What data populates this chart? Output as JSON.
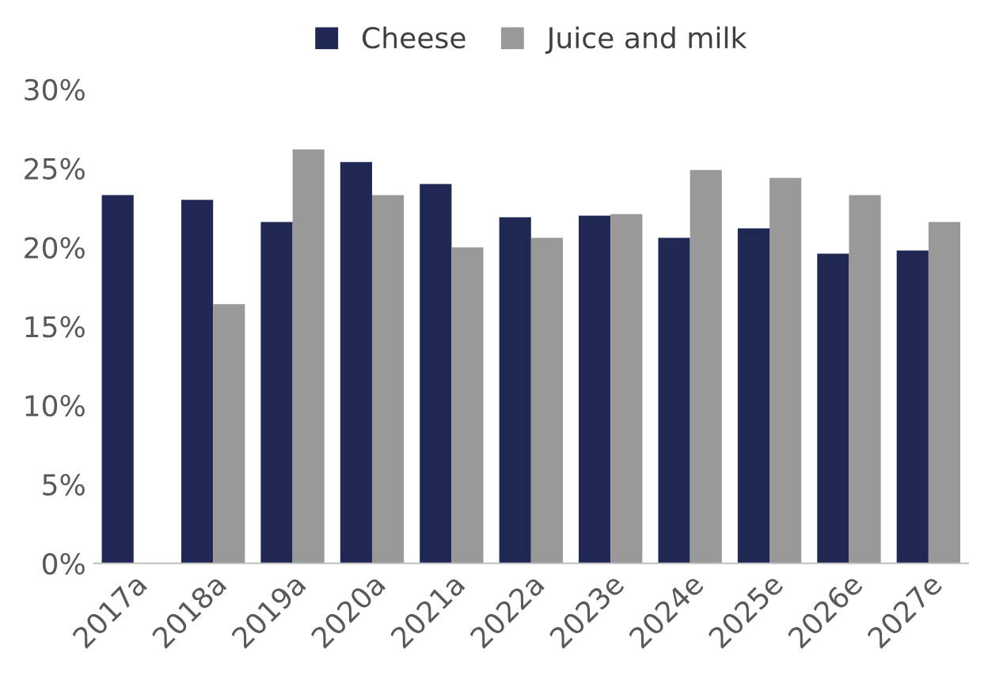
{
  "chart_data": {
    "type": "bar",
    "categories": [
      "2017a",
      "2018a",
      "2019a",
      "2020a",
      "2021a",
      "2022a",
      "2023e",
      "2024e",
      "2025e",
      "2026e",
      "2027e"
    ],
    "series": [
      {
        "name": "Cheese",
        "color": "#1f2753",
        "values": [
          23.3,
          23.0,
          21.6,
          25.4,
          24.0,
          21.9,
          22.0,
          20.6,
          21.2,
          19.6,
          19.8
        ]
      },
      {
        "name": "Juice and milk",
        "color": "#999999",
        "values": [
          null,
          16.4,
          26.2,
          23.3,
          20.0,
          20.6,
          22.1,
          24.9,
          24.4,
          23.3,
          21.6
        ]
      }
    ],
    "ylim": [
      0,
      30
    ],
    "yticks": [
      {
        "value": 0,
        "label": "0%"
      },
      {
        "value": 5,
        "label": "5%"
      },
      {
        "value": 10,
        "label": "10%"
      },
      {
        "value": 15,
        "label": "15%"
      },
      {
        "value": 20,
        "label": "20%"
      },
      {
        "value": 25,
        "label": "25%"
      },
      {
        "value": 30,
        "label": "30%"
      }
    ],
    "grid": false,
    "legend": "top"
  }
}
